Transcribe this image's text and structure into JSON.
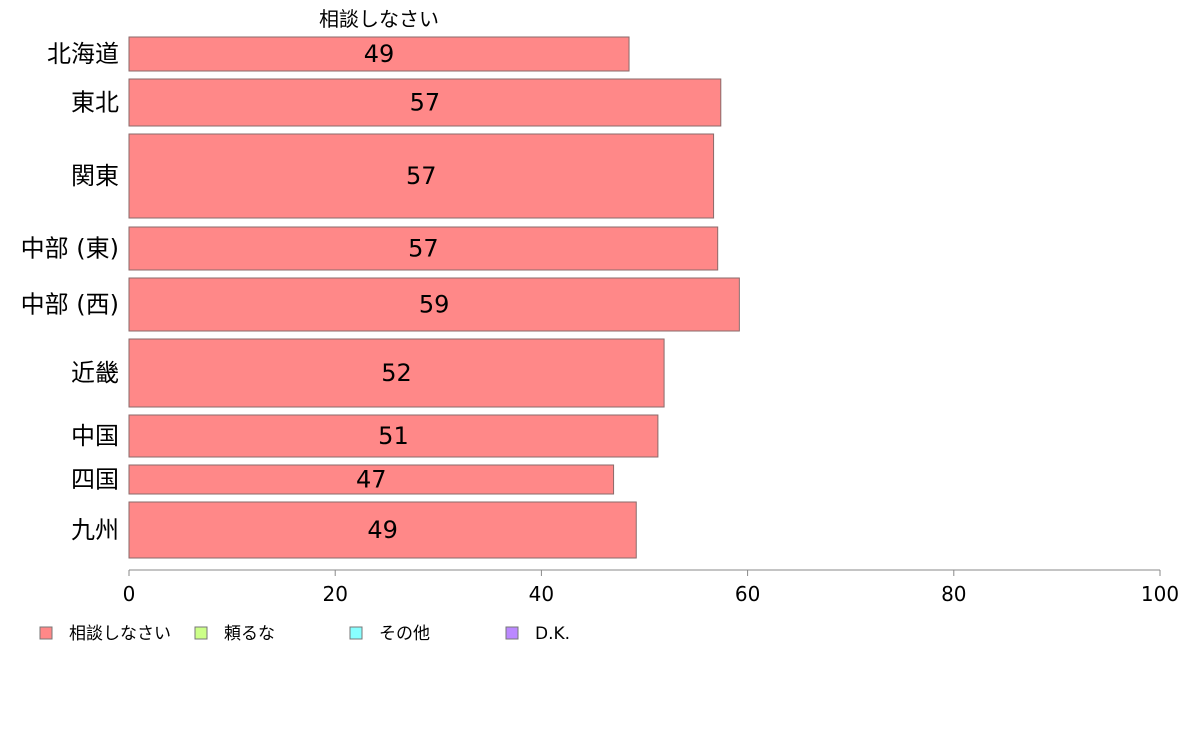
{
  "chart_data": {
    "type": "bar",
    "orientation": "horizontal",
    "categories": [
      "北海道",
      "東北",
      "関東",
      "中部 (東)",
      "中部 (西)",
      "近畿",
      "中国",
      "四国",
      "九州"
    ],
    "series": [
      {
        "name": "相談しなさい",
        "color": "#ff8888",
        "values": [
          48.5,
          57.4,
          56.7,
          57.1,
          59.2,
          51.9,
          51.3,
          47.0,
          49.2
        ],
        "labels": [
          "49",
          "57",
          "57",
          "57",
          "59",
          "52",
          "51",
          "47",
          "49"
        ]
      }
    ],
    "column_title": "相談しなさい",
    "xlim": [
      0,
      100
    ],
    "x_ticks": [
      "0",
      "20",
      "40",
      "60",
      "80",
      "100"
    ],
    "grid": false,
    "legend_position": "bottom-left",
    "legend": [
      {
        "label": "相談しなさい",
        "color": "#ff8888"
      },
      {
        "label": "頼るな",
        "color": "#ccff88"
      },
      {
        "label": "その他",
        "color": "#88ffff"
      },
      {
        "label": "D.K.",
        "color": "#bb88ff"
      }
    ]
  }
}
